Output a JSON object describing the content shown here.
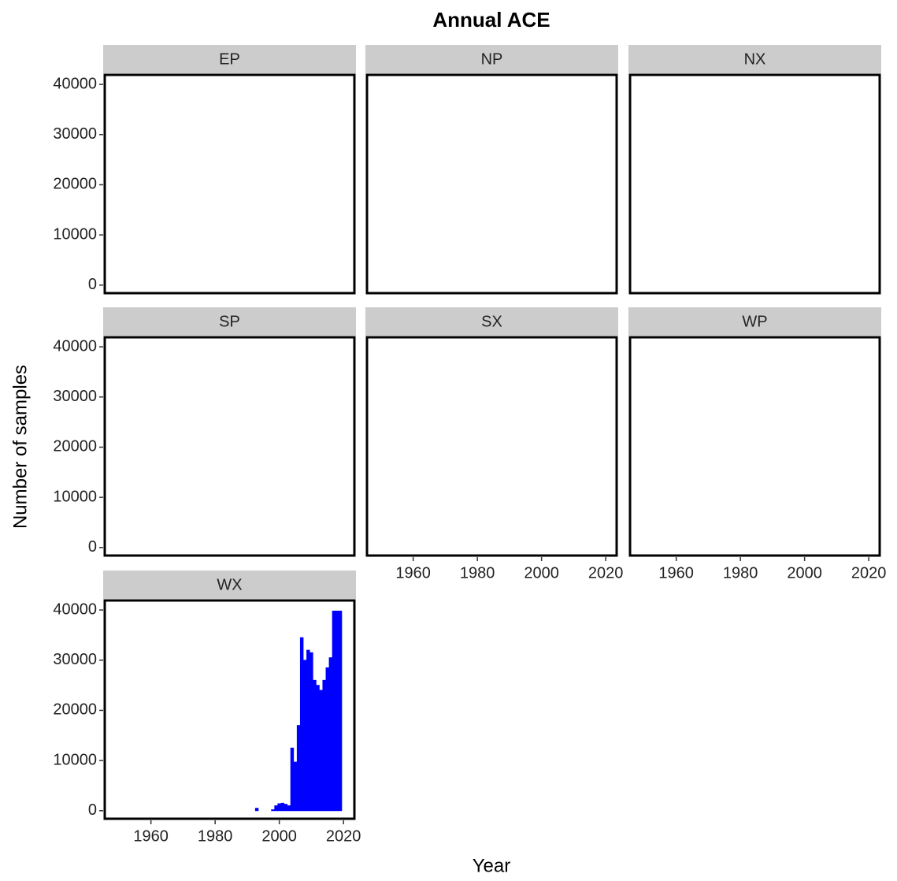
{
  "chart_data": {
    "type": "bar",
    "title": "Annual ACE",
    "x_label": "Year",
    "y_label": "Number of samples",
    "color": "#0000ff",
    "xlim": [
      1945.6,
      2023.4
    ],
    "ylim": [
      -1600,
      41900
    ],
    "xticks": [
      1960,
      1980,
      2000,
      2020
    ],
    "yticks": [
      0,
      10000,
      20000,
      30000,
      40000
    ],
    "x": [
      1948,
      1949,
      1950,
      1951,
      1952,
      1953,
      1954,
      1955,
      1956,
      1957,
      1958,
      1959,
      1960,
      1961,
      1962,
      1963,
      1964,
      1965,
      1966,
      1967,
      1968,
      1969,
      1970,
      1971,
      1972,
      1973,
      1974,
      1975,
      1976,
      1977,
      1978,
      1979,
      1980,
      1981,
      1982,
      1983,
      1984,
      1985,
      1986,
      1987,
      1988,
      1989,
      1990,
      1991,
      1992,
      1993,
      1994,
      1995,
      1996,
      1997,
      1998,
      1999,
      2000,
      2001,
      2002,
      2003,
      2004,
      2005,
      2006,
      2007,
      2008,
      2009,
      2010,
      2011,
      2012,
      2013,
      2014,
      2015,
      2016,
      2017,
      2018,
      2019
    ],
    "panels": [
      {
        "name": "EP",
        "values": [
          0,
          0,
          0,
          0,
          0,
          0,
          0,
          0,
          0,
          0,
          0,
          0,
          0,
          0,
          0,
          0,
          0,
          0,
          0,
          0,
          0,
          0,
          0,
          0,
          0,
          0,
          0,
          0,
          0,
          0,
          0,
          0,
          0,
          0,
          0,
          0,
          0,
          0,
          0,
          0,
          0,
          0,
          0,
          0,
          0,
          0,
          0,
          0,
          0,
          0,
          0,
          0,
          0,
          0,
          0,
          0,
          0,
          0,
          0,
          0,
          0,
          0,
          0,
          0,
          0,
          0,
          0,
          0,
          0,
          0,
          0,
          0
        ]
      },
      {
        "name": "NP",
        "values": [
          0,
          0,
          0,
          0,
          0,
          0,
          0,
          0,
          0,
          0,
          0,
          0,
          0,
          0,
          0,
          0,
          0,
          0,
          0,
          0,
          0,
          0,
          0,
          0,
          0,
          0,
          0,
          0,
          0,
          0,
          0,
          0,
          0,
          0,
          0,
          0,
          0,
          0,
          0,
          0,
          0,
          0,
          0,
          0,
          0,
          0,
          0,
          0,
          0,
          0,
          0,
          0,
          0,
          0,
          0,
          0,
          0,
          0,
          0,
          0,
          0,
          0,
          0,
          0,
          0,
          0,
          0,
          0,
          0,
          0,
          0,
          0
        ]
      },
      {
        "name": "NX",
        "values": [
          0,
          0,
          0,
          0,
          0,
          0,
          0,
          0,
          0,
          0,
          0,
          0,
          0,
          0,
          0,
          0,
          0,
          0,
          0,
          0,
          0,
          0,
          0,
          0,
          0,
          0,
          0,
          0,
          0,
          0,
          0,
          0,
          0,
          0,
          0,
          0,
          0,
          0,
          0,
          0,
          0,
          0,
          0,
          0,
          0,
          0,
          0,
          0,
          0,
          0,
          0,
          0,
          0,
          0,
          0,
          0,
          0,
          0,
          0,
          0,
          0,
          0,
          0,
          0,
          0,
          0,
          0,
          0,
          0,
          0,
          0,
          0
        ]
      },
      {
        "name": "SP",
        "values": [
          0,
          0,
          0,
          0,
          0,
          0,
          0,
          0,
          0,
          0,
          0,
          0,
          0,
          0,
          0,
          0,
          0,
          0,
          0,
          0,
          0,
          0,
          0,
          0,
          0,
          0,
          0,
          0,
          0,
          0,
          0,
          0,
          0,
          0,
          0,
          0,
          0,
          0,
          0,
          0,
          0,
          0,
          0,
          0,
          0,
          0,
          0,
          0,
          0,
          0,
          0,
          0,
          0,
          0,
          0,
          0,
          0,
          0,
          0,
          0,
          0,
          0,
          0,
          0,
          0,
          0,
          0,
          0,
          0,
          0,
          0,
          0
        ]
      },
      {
        "name": "SX",
        "values": [
          0,
          0,
          0,
          0,
          0,
          0,
          0,
          0,
          0,
          0,
          0,
          0,
          0,
          0,
          0,
          0,
          0,
          0,
          0,
          0,
          0,
          0,
          0,
          0,
          0,
          0,
          0,
          0,
          0,
          0,
          0,
          0,
          0,
          0,
          0,
          0,
          0,
          0,
          0,
          0,
          0,
          0,
          0,
          0,
          0,
          0,
          0,
          0,
          0,
          0,
          0,
          0,
          0,
          0,
          0,
          0,
          0,
          0,
          0,
          0,
          0,
          0,
          0,
          0,
          0,
          0,
          0,
          0,
          0,
          0,
          0,
          0
        ]
      },
      {
        "name": "WP",
        "values": [
          0,
          0,
          0,
          0,
          0,
          0,
          0,
          0,
          0,
          0,
          0,
          0,
          0,
          0,
          0,
          0,
          0,
          0,
          0,
          0,
          0,
          0,
          0,
          0,
          0,
          0,
          0,
          0,
          0,
          0,
          0,
          0,
          0,
          0,
          0,
          0,
          0,
          0,
          0,
          0,
          0,
          0,
          0,
          0,
          0,
          0,
          0,
          0,
          0,
          0,
          0,
          0,
          0,
          0,
          0,
          0,
          0,
          0,
          0,
          0,
          0,
          0,
          0,
          0,
          0,
          0,
          0,
          0,
          0,
          0,
          0,
          0
        ]
      },
      {
        "name": "WX",
        "values": [
          0,
          0,
          0,
          0,
          0,
          0,
          0,
          0,
          0,
          0,
          0,
          0,
          0,
          0,
          0,
          0,
          0,
          0,
          0,
          0,
          0,
          0,
          0,
          0,
          0,
          0,
          0,
          0,
          0,
          0,
          0,
          0,
          0,
          0,
          0,
          0,
          0,
          0,
          0,
          0,
          0,
          0,
          0,
          0,
          0,
          500,
          0,
          0,
          0,
          0,
          200,
          1000,
          1400,
          1500,
          1300,
          1000,
          12500,
          9700,
          17000,
          34500,
          30000,
          32000,
          31500,
          26000,
          25000,
          24000,
          26000,
          28500,
          30500,
          39800,
          39800,
          39800
        ]
      }
    ]
  }
}
